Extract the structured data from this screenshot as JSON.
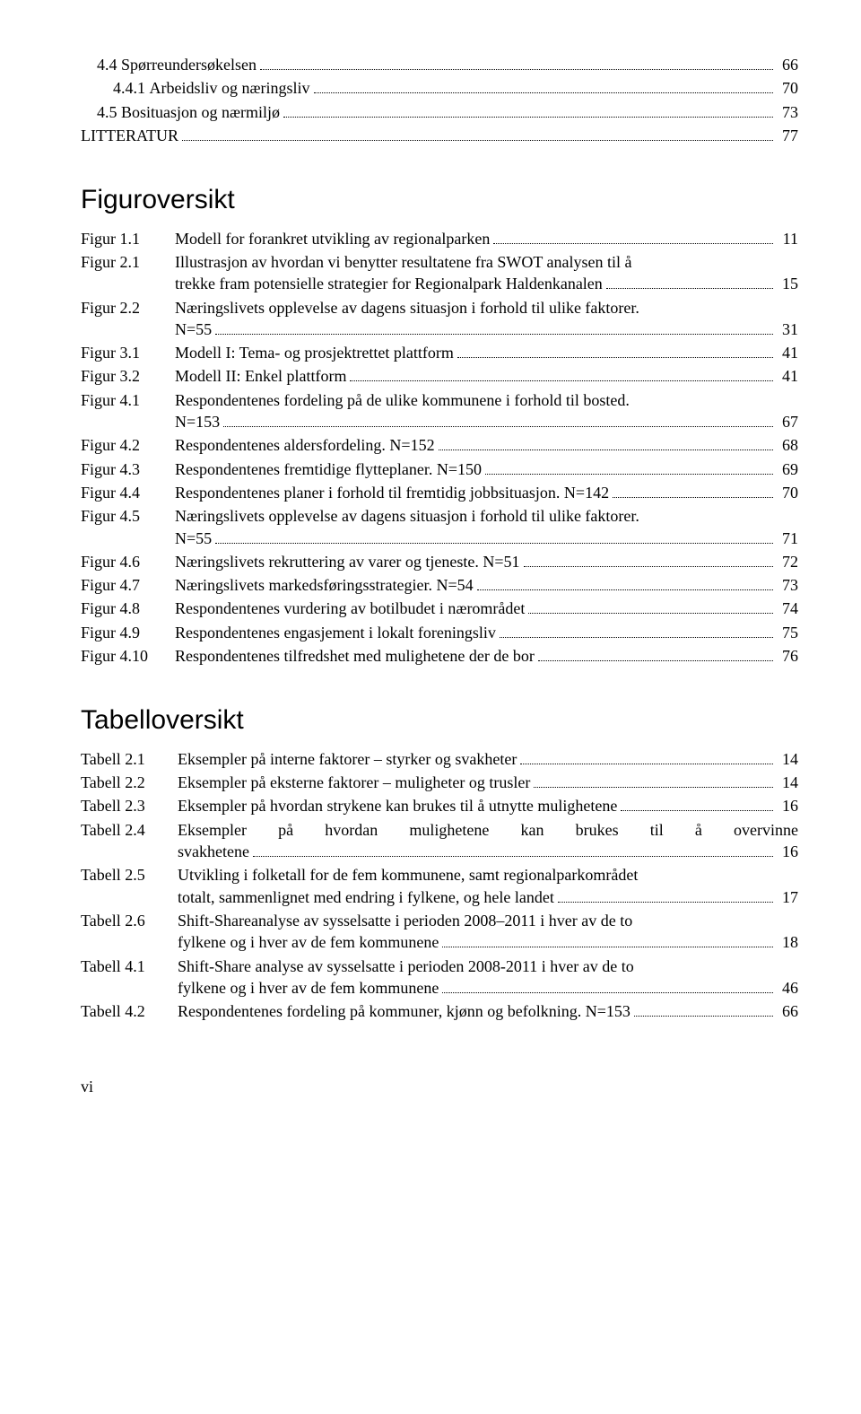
{
  "contents": [
    {
      "indent": 1,
      "num": "4.4",
      "title": "Spørreundersøkelsen",
      "page": "66"
    },
    {
      "indent": 2,
      "num": "4.4.1",
      "title": "Arbeidsliv og næringsliv",
      "page": "70"
    },
    {
      "indent": 1,
      "num": "4.5",
      "title": "Bosituasjon og nærmiljø",
      "page": "73"
    },
    {
      "indent": 0,
      "num": "",
      "title": "LITTERATUR",
      "page": "77"
    }
  ],
  "figHeading": "Figuroversikt",
  "figures": [
    {
      "label": "Figur 1.1",
      "text": "Modell for forankret utvikling av regionalparken",
      "page": "11",
      "multi": false
    },
    {
      "label": "Figur 2.1",
      "text": "Illustrasjon av hvordan vi benytter resultatene fra SWOT analysen til å trekke fram potensielle strategier for Regionalpark Haldenkanalen",
      "page": "15",
      "multi": true,
      "line1": "Illustrasjon av hvordan vi benytter resultatene fra SWOT analysen til å",
      "line2": "trekke fram potensielle strategier for Regionalpark Haldenkanalen"
    },
    {
      "label": "Figur 2.2",
      "text": "",
      "page": "31",
      "multi": true,
      "line1": "Næringslivets opplevelse av dagens situasjon i forhold til ulike faktorer.",
      "line2": "N=55"
    },
    {
      "label": "Figur 3.1",
      "text": "Modell I: Tema- og prosjektrettet plattform",
      "page": "41",
      "multi": false
    },
    {
      "label": "Figur 3.2",
      "text": "Modell II: Enkel plattform",
      "page": "41",
      "multi": false
    },
    {
      "label": "Figur 4.1",
      "text": "",
      "page": "67",
      "multi": true,
      "line1": "Respondentenes fordeling på de ulike kommunene i forhold til bosted.",
      "line2": "N=153"
    },
    {
      "label": "Figur 4.2",
      "text": "Respondentenes aldersfordeling. N=152",
      "page": "68",
      "multi": false
    },
    {
      "label": "Figur 4.3",
      "text": "Respondentenes fremtidige flytteplaner. N=150",
      "page": "69",
      "multi": false
    },
    {
      "label": "Figur 4.4",
      "text": "Respondentenes planer i forhold til fremtidig jobbsituasjon. N=142",
      "page": "70",
      "multi": false
    },
    {
      "label": "Figur 4.5",
      "text": "",
      "page": "71",
      "multi": true,
      "line1": "Næringslivets opplevelse av dagens situasjon i forhold til ulike faktorer.",
      "line2": "N=55"
    },
    {
      "label": "Figur 4.6",
      "text": "Næringslivets rekruttering av varer og tjeneste. N=51",
      "page": "72",
      "multi": false
    },
    {
      "label": "Figur 4.7",
      "text": "Næringslivets markedsføringsstrategier. N=54",
      "page": "73",
      "multi": false
    },
    {
      "label": "Figur 4.8",
      "text": "Respondentenes vurdering av botilbudet i nærområdet",
      "page": "74",
      "multi": false
    },
    {
      "label": "Figur 4.9",
      "text": "Respondentenes engasjement i lokalt foreningsliv",
      "page": "75",
      "multi": false
    },
    {
      "label": "Figur 4.10",
      "text": "Respondentenes tilfredshet med mulighetene der de bor",
      "page": "76",
      "multi": false
    }
  ],
  "tabHeading": "Tabelloversikt",
  "tables": [
    {
      "label": "Tabell 2.1",
      "text": "Eksempler på interne faktorer – styrker og svakheter",
      "page": "14",
      "multi": false
    },
    {
      "label": "Tabell 2.2",
      "text": "Eksempler på eksterne faktorer – muligheter og trusler",
      "page": "14",
      "multi": false
    },
    {
      "label": "Tabell 2.3",
      "text": "Eksempler på hvordan strykene kan brukes til å utnytte mulighetene",
      "page": "16",
      "multi": false
    },
    {
      "label": "Tabell 2.4",
      "text": "",
      "page": "16",
      "multi": true,
      "line1": "Eksempler på hvordan mulighetene kan brukes til å overvinne",
      "line2": "svakhetene",
      "justify": true
    },
    {
      "label": "Tabell 2.5",
      "text": "",
      "page": "17",
      "multi": true,
      "line1": "Utvikling i folketall for de fem kommunene, samt regionalparkområdet",
      "line2": "totalt, sammenlignet med endring i fylkene, og hele landet"
    },
    {
      "label": "Tabell 2.6",
      "text": "",
      "page": "18",
      "multi": true,
      "line1": "Shift-Shareanalyse av sysselsatte i perioden 2008–2011 i hver av de to",
      "line2": "fylkene og i hver av de fem kommunene"
    },
    {
      "label": "Tabell 4.1",
      "text": "",
      "page": "46",
      "multi": true,
      "line1": "Shift-Share analyse av sysselsatte i perioden 2008-2011 i hver av de to",
      "line2": "fylkene og i hver av de fem kommunene"
    },
    {
      "label": "Tabell 4.2",
      "text": "Respondentenes fordeling på kommuner, kjønn og befolkning. N=153",
      "page": "66",
      "multi": false
    }
  ],
  "pageNum": "vi"
}
